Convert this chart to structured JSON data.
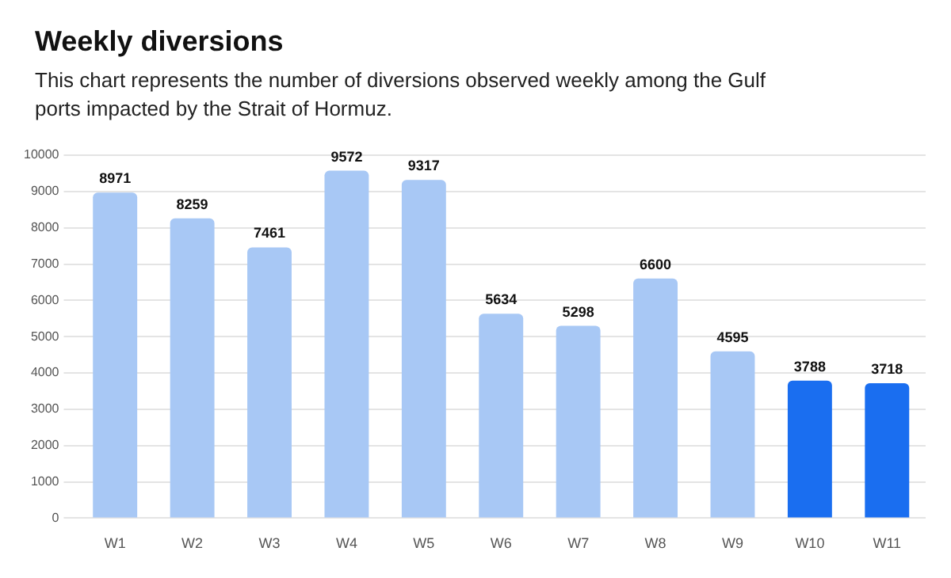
{
  "chart_data": {
    "type": "bar",
    "title": "Weekly diversions",
    "subtitle": "This chart represents the number of diversions observed weekly among the Gulf ports impacted by the Strait of Hormuz.",
    "categories": [
      "W1",
      "W2",
      "W3",
      "W4",
      "W5",
      "W6",
      "W7",
      "W8",
      "W9",
      "W10",
      "W11"
    ],
    "values": [
      8971,
      8259,
      7461,
      9572,
      9317,
      5634,
      5298,
      6600,
      4595,
      3788,
      3718
    ],
    "colors": [
      "#a8c8f5",
      "#a8c8f5",
      "#a8c8f5",
      "#a8c8f5",
      "#a8c8f5",
      "#a8c8f5",
      "#a8c8f5",
      "#a8c8f5",
      "#a8c8f5",
      "#1a6ef0",
      "#1a6ef0"
    ],
    "ylim": [
      0,
      10000
    ],
    "yticks": [
      0,
      1000,
      2000,
      3000,
      4000,
      5000,
      6000,
      7000,
      8000,
      9000,
      10000
    ],
    "grid": "y",
    "data_labels": true,
    "legend": false
  }
}
